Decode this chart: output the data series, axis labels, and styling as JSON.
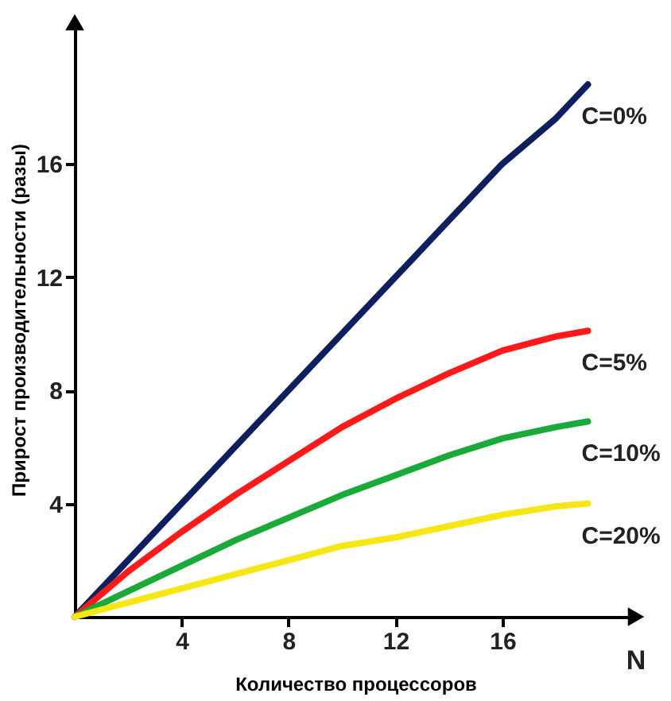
{
  "chart_data": {
    "type": "line",
    "xlabel": "Количество процессоров",
    "ylabel": "Прирост производительности (разы)",
    "annotations": [
      "N"
    ],
    "x": [
      0,
      2,
      4,
      6,
      8,
      10,
      12,
      14,
      16,
      18,
      19.2
    ],
    "series": [
      {
        "name": "C=0%",
        "color": "#0d1f5c",
        "values": [
          0,
          2,
          4,
          6,
          8,
          10,
          12,
          14,
          16,
          17.6,
          18.8
        ]
      },
      {
        "name": "C=5%",
        "color": "#ff1a1a",
        "values": [
          0,
          1.6,
          3.0,
          4.3,
          5.5,
          6.7,
          7.7,
          8.6,
          9.4,
          9.9,
          10.1
        ]
      },
      {
        "name": "C=10%",
        "color": "#1aaa3a",
        "values": [
          0,
          0.9,
          1.8,
          2.7,
          3.5,
          4.3,
          5.0,
          5.7,
          6.3,
          6.7,
          6.9
        ]
      },
      {
        "name": "C=20%",
        "color": "#f5e614",
        "values": [
          0,
          0.5,
          1.0,
          1.5,
          2.0,
          2.5,
          2.8,
          3.2,
          3.6,
          3.9,
          4.0
        ]
      }
    ],
    "xlim": [
      0,
      21
    ],
    "ylim": [
      0,
      21
    ],
    "xticks": [
      4,
      8,
      12,
      16
    ],
    "yticks": [
      4,
      8,
      12,
      16
    ],
    "grid": false,
    "legend": false,
    "marker": "none",
    "line_style": "solid"
  }
}
